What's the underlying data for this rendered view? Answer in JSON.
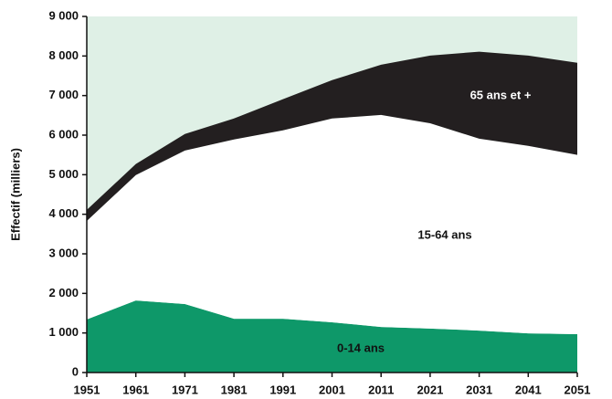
{
  "chart_data": {
    "type": "stacked_area",
    "y_label": "Effectif (milliers)",
    "x": [
      1951,
      1961,
      1971,
      1981,
      1991,
      2001,
      2011,
      2021,
      2031,
      2041,
      2051
    ],
    "xlim": [
      1951,
      2051
    ],
    "xticks": [
      1951,
      1961,
      1971,
      1981,
      1991,
      2001,
      2011,
      2021,
      2031,
      2041,
      2051
    ],
    "ylim": [
      0,
      9000
    ],
    "yticks": [
      0,
      {
        "value": 1000,
        "label": "1 000"
      },
      {
        "value": 2000,
        "label": "2 000"
      },
      {
        "value": 3000,
        "label": "3 000"
      },
      {
        "value": 4000,
        "label": "4 000"
      },
      {
        "value": 5000,
        "label": "5 000"
      },
      {
        "value": 6000,
        "label": "6 000"
      },
      {
        "value": 7000,
        "label": "7 000"
      },
      {
        "value": 8000,
        "label": "8 000"
      },
      {
        "value": 9000,
        "label": "9 000"
      }
    ],
    "background": "#dff0e6",
    "series": [
      {
        "name": "0-14 ans",
        "color": "#0e9869",
        "text_color": "#111111",
        "values": [
          1340,
          1820,
          1730,
          1360,
          1360,
          1270,
          1150,
          1110,
          1060,
          990,
          970
        ]
      },
      {
        "name": "15-64 ans",
        "color": "#ffffff",
        "text_color": "#111111",
        "values": [
          2490,
          3170,
          3880,
          4530,
          4760,
          5150,
          5360,
          5190,
          4850,
          4740,
          4530
        ]
      },
      {
        "name": "65 ans et +",
        "color": "#231f20",
        "text_color": "#ffffff",
        "values": [
          280,
          280,
          420,
          530,
          790,
          970,
          1270,
          1710,
          2200,
          2280,
          2330
        ]
      }
    ]
  }
}
